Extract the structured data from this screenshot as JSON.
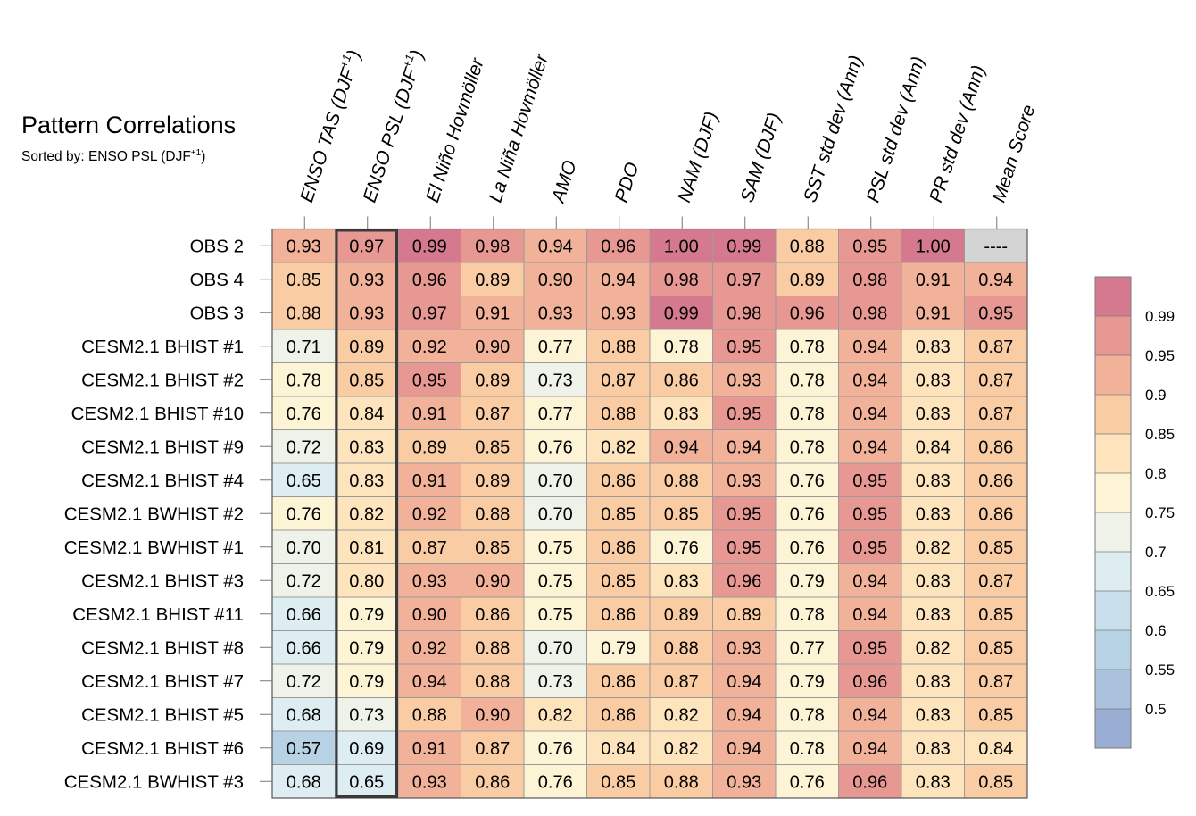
{
  "chart_data": {
    "type": "heatmap",
    "title": "Pattern Correlations",
    "subtitle_prefix": "Sorted by: ENSO PSL (DJF",
    "subtitle_sup": "+1",
    "subtitle_suffix": ")",
    "highlighted_column": 1,
    "columns": [
      {
        "label": "ENSO TAS (DJF",
        "sup": "+1",
        "suffix": ")"
      },
      {
        "label": "ENSO PSL (DJF",
        "sup": "+1",
        "suffix": ")"
      },
      {
        "label": "El Niño Hovmöller",
        "sup": "",
        "suffix": ""
      },
      {
        "label": "La Niña Hovmöller",
        "sup": "",
        "suffix": ""
      },
      {
        "label": "AMO",
        "sup": "",
        "suffix": ""
      },
      {
        "label": "PDO",
        "sup": "",
        "suffix": ""
      },
      {
        "label": "NAM (DJF)",
        "sup": "",
        "suffix": ""
      },
      {
        "label": "SAM (DJF)",
        "sup": "",
        "suffix": ""
      },
      {
        "label": "SST std dev (Ann)",
        "sup": "",
        "suffix": ""
      },
      {
        "label": "PSL std dev (Ann)",
        "sup": "",
        "suffix": ""
      },
      {
        "label": "PR std dev (Ann)",
        "sup": "",
        "suffix": ""
      },
      {
        "label": "Mean Score",
        "sup": "",
        "suffix": ""
      }
    ],
    "missing_text": "----",
    "rows": [
      {
        "name": "OBS 2",
        "values": [
          "0.93",
          "0.97",
          "0.99",
          "0.98",
          "0.94",
          "0.96",
          "1.00",
          "0.99",
          "0.88",
          "0.95",
          "1.00",
          null
        ]
      },
      {
        "name": "OBS 4",
        "values": [
          "0.85",
          "0.93",
          "0.96",
          "0.89",
          "0.90",
          "0.94",
          "0.98",
          "0.97",
          "0.89",
          "0.98",
          "0.91",
          "0.94"
        ]
      },
      {
        "name": "OBS 3",
        "values": [
          "0.88",
          "0.93",
          "0.97",
          "0.91",
          "0.93",
          "0.93",
          "0.99",
          "0.98",
          "0.96",
          "0.98",
          "0.91",
          "0.95"
        ]
      },
      {
        "name": "CESM2.1 BHIST #1",
        "values": [
          "0.71",
          "0.89",
          "0.92",
          "0.90",
          "0.77",
          "0.88",
          "0.78",
          "0.95",
          "0.78",
          "0.94",
          "0.83",
          "0.87"
        ]
      },
      {
        "name": "CESM2.1 BHIST #2",
        "values": [
          "0.78",
          "0.85",
          "0.95",
          "0.89",
          "0.73",
          "0.87",
          "0.86",
          "0.93",
          "0.78",
          "0.94",
          "0.83",
          "0.87"
        ]
      },
      {
        "name": "CESM2.1 BHIST #10",
        "values": [
          "0.76",
          "0.84",
          "0.91",
          "0.87",
          "0.77",
          "0.88",
          "0.83",
          "0.95",
          "0.78",
          "0.94",
          "0.83",
          "0.87"
        ]
      },
      {
        "name": "CESM2.1 BHIST #9",
        "values": [
          "0.72",
          "0.83",
          "0.89",
          "0.85",
          "0.76",
          "0.82",
          "0.94",
          "0.94",
          "0.78",
          "0.94",
          "0.84",
          "0.86"
        ]
      },
      {
        "name": "CESM2.1 BHIST #4",
        "values": [
          "0.65",
          "0.83",
          "0.91",
          "0.89",
          "0.70",
          "0.86",
          "0.88",
          "0.93",
          "0.76",
          "0.95",
          "0.83",
          "0.86"
        ]
      },
      {
        "name": "CESM2.1 BWHIST #2",
        "values": [
          "0.76",
          "0.82",
          "0.92",
          "0.88",
          "0.70",
          "0.85",
          "0.85",
          "0.95",
          "0.76",
          "0.95",
          "0.83",
          "0.86"
        ]
      },
      {
        "name": "CESM2.1 BWHIST #1",
        "values": [
          "0.70",
          "0.81",
          "0.87",
          "0.85",
          "0.75",
          "0.86",
          "0.76",
          "0.95",
          "0.76",
          "0.95",
          "0.82",
          "0.85"
        ]
      },
      {
        "name": "CESM2.1 BHIST #3",
        "values": [
          "0.72",
          "0.80",
          "0.93",
          "0.90",
          "0.75",
          "0.85",
          "0.83",
          "0.96",
          "0.79",
          "0.94",
          "0.83",
          "0.87"
        ]
      },
      {
        "name": "CESM2.1 BHIST #11",
        "values": [
          "0.66",
          "0.79",
          "0.90",
          "0.86",
          "0.75",
          "0.86",
          "0.89",
          "0.89",
          "0.78",
          "0.94",
          "0.83",
          "0.85"
        ]
      },
      {
        "name": "CESM2.1 BHIST #8",
        "values": [
          "0.66",
          "0.79",
          "0.92",
          "0.88",
          "0.70",
          "0.79",
          "0.88",
          "0.93",
          "0.77",
          "0.95",
          "0.82",
          "0.85"
        ]
      },
      {
        "name": "CESM2.1 BHIST #7",
        "values": [
          "0.72",
          "0.79",
          "0.94",
          "0.88",
          "0.73",
          "0.86",
          "0.87",
          "0.94",
          "0.79",
          "0.96",
          "0.83",
          "0.87"
        ]
      },
      {
        "name": "CESM2.1 BHIST #5",
        "values": [
          "0.68",
          "0.73",
          "0.88",
          "0.90",
          "0.82",
          "0.86",
          "0.82",
          "0.94",
          "0.78",
          "0.94",
          "0.83",
          "0.85"
        ]
      },
      {
        "name": "CESM2.1 BHIST #6",
        "values": [
          "0.57",
          "0.69",
          "0.91",
          "0.87",
          "0.76",
          "0.84",
          "0.82",
          "0.94",
          "0.78",
          "0.94",
          "0.83",
          "0.84"
        ]
      },
      {
        "name": "CESM2.1 BWHIST #3",
        "values": [
          "0.68",
          "0.65",
          "0.93",
          "0.86",
          "0.76",
          "0.85",
          "0.88",
          "0.93",
          "0.76",
          "0.96",
          "0.83",
          "0.85"
        ]
      }
    ],
    "colorbar": {
      "labels": [
        "0.99",
        "0.95",
        "0.9",
        "0.85",
        "0.8",
        "0.75",
        "0.7",
        "0.65",
        "0.6",
        "0.55",
        "0.5"
      ],
      "bin_edges": [
        0.5,
        0.55,
        0.6,
        0.65,
        0.7,
        0.75,
        0.8,
        0.85,
        0.9,
        0.95,
        0.99
      ],
      "colors": [
        "#9aaed3",
        "#a9c1dc",
        "#b8d2e5",
        "#c9e0ec",
        "#ddedf2",
        "#eef2e8",
        "#fdf4d6",
        "#fde4bd",
        "#f9cca3",
        "#f2b29a",
        "#e89893",
        "#d57a8e"
      ],
      "missing_color": "#d4d4d4"
    }
  }
}
